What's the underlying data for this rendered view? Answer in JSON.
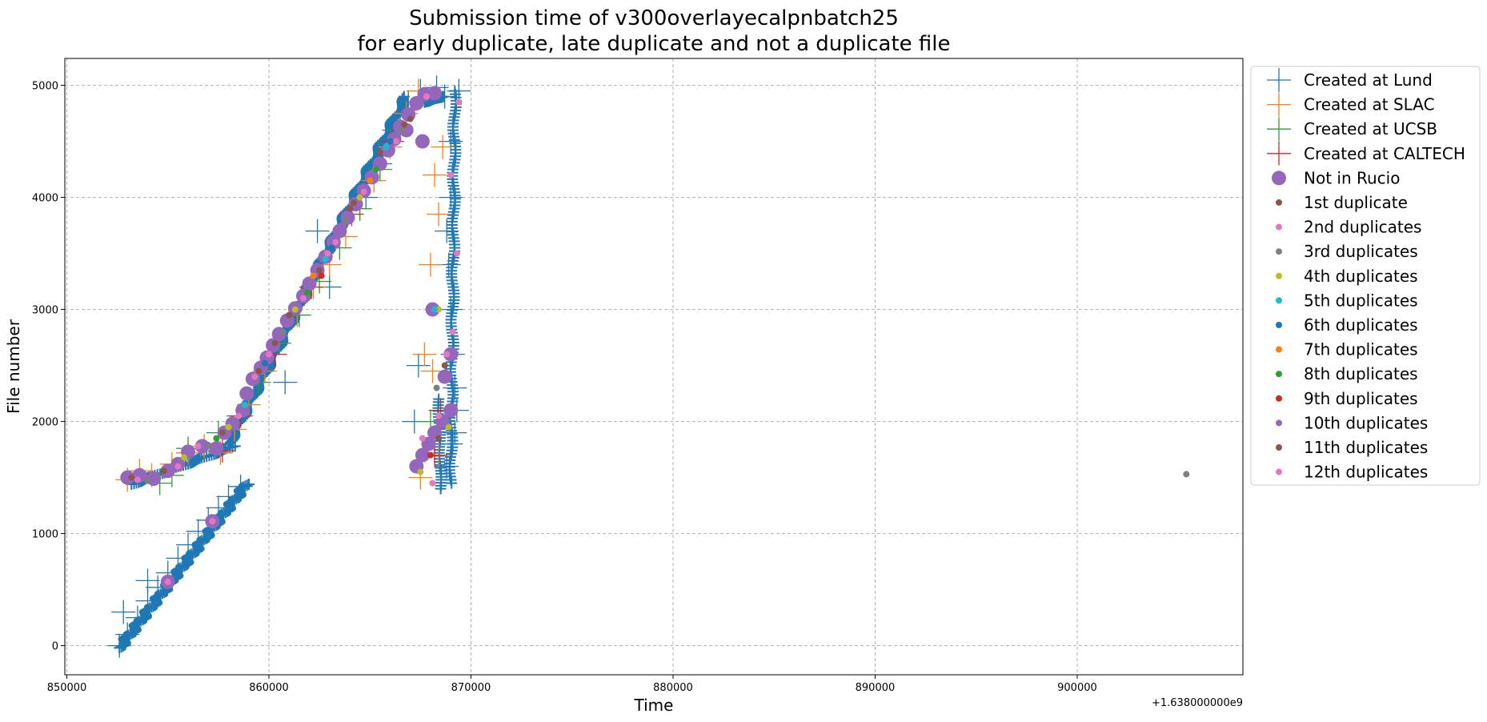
{
  "chart_data": {
    "type": "scatter",
    "title": "Submission time of v300overlayecalpnbatch25",
    "subtitle": "for early duplicate, late duplicate and not a duplicate file",
    "xlabel": "Time",
    "ylabel": "File number",
    "x_offset_label": "+1.638000000e9",
    "xlim": [
      849900,
      908200
    ],
    "ylim": [
      -260,
      5240
    ],
    "xticks": [
      850000,
      860000,
      870000,
      880000,
      890000,
      900000
    ],
    "yticks": [
      0,
      1000,
      2000,
      3000,
      4000,
      5000
    ],
    "grid": true,
    "legend_position": "outside-right",
    "colors": {
      "lund": "#1f77b4",
      "slac": "#ff7f0e",
      "ucsb": "#2ca02c",
      "caltech": "#d62728",
      "not_in_rucio": "#9467bd",
      "brown": "#8c564b",
      "pink": "#e377c2",
      "gray": "#7f7f7f",
      "olive": "#bcbd22",
      "cyan": "#17becf"
    },
    "legend": [
      {
        "label": "Created at Lund",
        "marker": "plus",
        "color": "#1f77b4"
      },
      {
        "label": "Created at SLAC",
        "marker": "plus",
        "color": "#ff7f0e"
      },
      {
        "label": "Created at UCSB",
        "marker": "plus",
        "color": "#2ca02c"
      },
      {
        "label": "Created at CALTECH",
        "marker": "plus",
        "color": "#d62728"
      },
      {
        "label": "Not in Rucio",
        "marker": "bigdot",
        "color": "#9467bd"
      },
      {
        "label": "1st duplicate",
        "marker": "dot",
        "color": "#8c564b"
      },
      {
        "label": "2nd duplicates",
        "marker": "dot",
        "color": "#e377c2"
      },
      {
        "label": "3rd duplicates",
        "marker": "dot",
        "color": "#7f7f7f"
      },
      {
        "label": "4th duplicates",
        "marker": "dot",
        "color": "#bcbd22"
      },
      {
        "label": "5th duplicates",
        "marker": "dot",
        "color": "#17becf"
      },
      {
        "label": "6th duplicates",
        "marker": "dot",
        "color": "#1f77b4"
      },
      {
        "label": "7th duplicates",
        "marker": "dot",
        "color": "#ff7f0e"
      },
      {
        "label": "8th duplicates",
        "marker": "dot",
        "color": "#2ca02c"
      },
      {
        "label": "9th duplicates",
        "marker": "dot",
        "color": "#d62728"
      },
      {
        "label": "10th duplicates",
        "marker": "dot",
        "color": "#9467bd"
      },
      {
        "label": "11th duplicates",
        "marker": "dot",
        "color": "#8c564b"
      },
      {
        "label": "12th duplicates",
        "marker": "dot",
        "color": "#e377c2"
      }
    ],
    "series": [
      {
        "name": "Created at Lund",
        "color": "#1f77b4",
        "points": [
          [
            852600,
            0
          ],
          [
            853000,
            100
          ],
          [
            853500,
            250
          ],
          [
            854000,
            400
          ],
          [
            854500,
            520
          ],
          [
            855000,
            650
          ],
          [
            855500,
            780
          ],
          [
            856000,
            900
          ],
          [
            856500,
            1020
          ],
          [
            857000,
            1120
          ],
          [
            857500,
            1230
          ],
          [
            858000,
            1330
          ],
          [
            858600,
            1420
          ],
          [
            852800,
            300
          ],
          [
            854000,
            580
          ],
          [
            860800,
            2350
          ],
          [
            862400,
            3700
          ],
          [
            863000,
            3200
          ],
          [
            864800,
            4000
          ],
          [
            865500,
            4300
          ],
          [
            866200,
            4600
          ],
          [
            866900,
            4850
          ],
          [
            867500,
            4950
          ],
          [
            868300,
            4980
          ],
          [
            867400,
            2500
          ],
          [
            867200,
            2000
          ],
          [
            868700,
            4900
          ],
          [
            869000,
            4500
          ],
          [
            869000,
            4000
          ],
          [
            868800,
            3700
          ],
          [
            868900,
            3400
          ],
          [
            869000,
            3000
          ],
          [
            869100,
            2600
          ],
          [
            869200,
            2300
          ],
          [
            869300,
            2100
          ],
          [
            869200,
            1900
          ],
          [
            869000,
            1800
          ],
          [
            868800,
            1600
          ],
          [
            869400,
            4950
          ]
        ]
      },
      {
        "name": "Created at SLAC",
        "color": "#ff7f0e",
        "points": [
          [
            853000,
            1480
          ],
          [
            853600,
            1560
          ],
          [
            854200,
            1520
          ],
          [
            855200,
            1620
          ],
          [
            856000,
            1720
          ],
          [
            856800,
            1780
          ],
          [
            857600,
            1720
          ],
          [
            858300,
            1930
          ],
          [
            859000,
            2150
          ],
          [
            859800,
            2450
          ],
          [
            860500,
            2700
          ],
          [
            861400,
            2950
          ],
          [
            862200,
            3200
          ],
          [
            863000,
            3400
          ],
          [
            863800,
            3650
          ],
          [
            864500,
            3900
          ],
          [
            865200,
            4150
          ],
          [
            866000,
            4450
          ],
          [
            866800,
            4750
          ],
          [
            867400,
            4950
          ],
          [
            868000,
            3400
          ],
          [
            867700,
            2600
          ],
          [
            868100,
            2450
          ],
          [
            868600,
            4450
          ],
          [
            868200,
            4200
          ],
          [
            868400,
            3850
          ],
          [
            867500,
            1500
          ],
          [
            868400,
            1700
          ]
        ]
      },
      {
        "name": "Created at UCSB",
        "color": "#2ca02c",
        "points": [
          [
            854600,
            1450
          ],
          [
            855200,
            1520
          ],
          [
            856000,
            1760
          ],
          [
            857500,
            1900
          ],
          [
            858500,
            2050
          ],
          [
            859500,
            2350
          ],
          [
            860500,
            2700
          ],
          [
            861500,
            2950
          ],
          [
            862500,
            3250
          ],
          [
            863500,
            3550
          ],
          [
            864500,
            3900
          ],
          [
            865500,
            4250
          ],
          [
            866500,
            4600
          ],
          [
            868000,
            2000
          ]
        ]
      },
      {
        "name": "Created at CALTECH",
        "color": "#d62728",
        "points": [
          [
            857700,
            1740
          ],
          [
            858600,
            2050
          ],
          [
            860300,
            2600
          ],
          [
            862100,
            3200
          ],
          [
            864100,
            3850
          ],
          [
            866100,
            4500
          ],
          [
            868200,
            1700
          ],
          [
            868500,
            2100
          ]
        ]
      },
      {
        "name": "Not in Rucio",
        "color": "#9467bd",
        "points": [
          [
            853000,
            1500
          ],
          [
            853600,
            1520
          ],
          [
            854300,
            1490
          ],
          [
            855000,
            1560
          ],
          [
            855500,
            1620
          ],
          [
            856000,
            1730
          ],
          [
            856700,
            1780
          ],
          [
            857400,
            1760
          ],
          [
            857800,
            1900
          ],
          [
            858200,
            1980
          ],
          [
            858700,
            2100
          ],
          [
            858900,
            2250
          ],
          [
            859200,
            2380
          ],
          [
            859600,
            2480
          ],
          [
            859900,
            2570
          ],
          [
            860200,
            2680
          ],
          [
            860500,
            2780
          ],
          [
            860900,
            2900
          ],
          [
            861300,
            3010
          ],
          [
            861700,
            3120
          ],
          [
            862000,
            3230
          ],
          [
            862400,
            3350
          ],
          [
            862800,
            3470
          ],
          [
            863200,
            3600
          ],
          [
            863500,
            3700
          ],
          [
            863900,
            3820
          ],
          [
            864300,
            3940
          ],
          [
            864700,
            4060
          ],
          [
            865100,
            4180
          ],
          [
            865500,
            4300
          ],
          [
            865900,
            4420
          ],
          [
            866200,
            4520
          ],
          [
            866500,
            4630
          ],
          [
            866900,
            4740
          ],
          [
            867300,
            4840
          ],
          [
            867700,
            4920
          ],
          [
            868200,
            4930
          ],
          [
            855000,
            570
          ],
          [
            857200,
            1110
          ],
          [
            867300,
            1600
          ],
          [
            867600,
            1700
          ],
          [
            867900,
            1800
          ],
          [
            868200,
            1900
          ],
          [
            868600,
            2000
          ],
          [
            869000,
            2100
          ],
          [
            868100,
            3000
          ],
          [
            868700,
            2400
          ],
          [
            869000,
            2600
          ],
          [
            867600,
            4500
          ],
          [
            866800,
            4600
          ]
        ]
      },
      {
        "name": "1st duplicate",
        "color": "#8c564b",
        "points": [
          [
            853200,
            1500
          ],
          [
            854800,
            1560
          ],
          [
            857700,
            1900
          ],
          [
            859500,
            2450
          ],
          [
            861000,
            2950
          ],
          [
            862500,
            3350
          ],
          [
            864000,
            3900
          ],
          [
            865500,
            4400
          ],
          [
            867000,
            4700
          ],
          [
            868400,
            1850
          ],
          [
            868700,
            2500
          ]
        ]
      },
      {
        "name": "2nd duplicates",
        "color": "#e377c2",
        "points": [
          [
            853500,
            1480
          ],
          [
            855500,
            1600
          ],
          [
            856500,
            1780
          ],
          [
            858500,
            2050
          ],
          [
            860000,
            2600
          ],
          [
            861700,
            3100
          ],
          [
            863300,
            3600
          ],
          [
            864700,
            4050
          ],
          [
            866300,
            4500
          ],
          [
            867800,
            4900
          ],
          [
            868100,
            1450
          ],
          [
            869100,
            2800
          ],
          [
            869300,
            3500
          ],
          [
            869000,
            4200
          ],
          [
            869400,
            4850
          ],
          [
            855000,
            570
          ],
          [
            857200,
            1110
          ],
          [
            868400,
            2050
          ],
          [
            868800,
            2600
          ]
        ]
      },
      {
        "name": "3rd duplicates",
        "color": "#7f7f7f",
        "points": [
          [
            854000,
            1470
          ],
          [
            857000,
            1790
          ],
          [
            860700,
            2800
          ],
          [
            863800,
            3800
          ],
          [
            866600,
            4600
          ],
          [
            868300,
            2300
          ],
          [
            905400,
            1530
          ]
        ]
      },
      {
        "name": "4th duplicates",
        "color": "#bcbd22",
        "points": [
          [
            855800,
            1680
          ],
          [
            858000,
            1950
          ],
          [
            861300,
            3000
          ],
          [
            864500,
            4000
          ],
          [
            867500,
            1550
          ],
          [
            868900,
            1950
          ],
          [
            868400,
            3000
          ]
        ]
      },
      {
        "name": "5th duplicates",
        "color": "#17becf",
        "points": [
          [
            858800,
            2150
          ],
          [
            862800,
            3450
          ],
          [
            865800,
            4450
          ],
          [
            868200,
            3000
          ]
        ]
      },
      {
        "name": "6th duplicates",
        "color": "#1f77b4",
        "points": [
          [
            859800,
            2520
          ],
          [
            863100,
            3550
          ],
          [
            866000,
            4500
          ]
        ]
      },
      {
        "name": "7th duplicates",
        "color": "#ff7f0e",
        "points": [
          [
            862200,
            3300
          ],
          [
            865000,
            4150
          ]
        ]
      },
      {
        "name": "8th duplicates",
        "color": "#2ca02c",
        "points": [
          [
            857400,
            1850
          ],
          [
            861900,
            3150
          ],
          [
            865300,
            4250
          ]
        ]
      },
      {
        "name": "9th duplicates",
        "color": "#d62728",
        "points": [
          [
            862600,
            3300
          ],
          [
            868000,
            1700
          ]
        ]
      },
      {
        "name": "10th duplicates",
        "color": "#9467bd",
        "points": [
          [
            863600,
            3750
          ],
          [
            867200,
            4800
          ]
        ]
      },
      {
        "name": "11th duplicates",
        "color": "#8c564b",
        "points": [
          [
            860300,
            2700
          ],
          [
            864200,
            3950
          ],
          [
            866700,
            4650
          ]
        ]
      },
      {
        "name": "12th duplicates",
        "color": "#e377c2",
        "points": [
          [
            859300,
            2400
          ],
          [
            862900,
            3500
          ],
          [
            867600,
            1850
          ]
        ]
      }
    ]
  }
}
